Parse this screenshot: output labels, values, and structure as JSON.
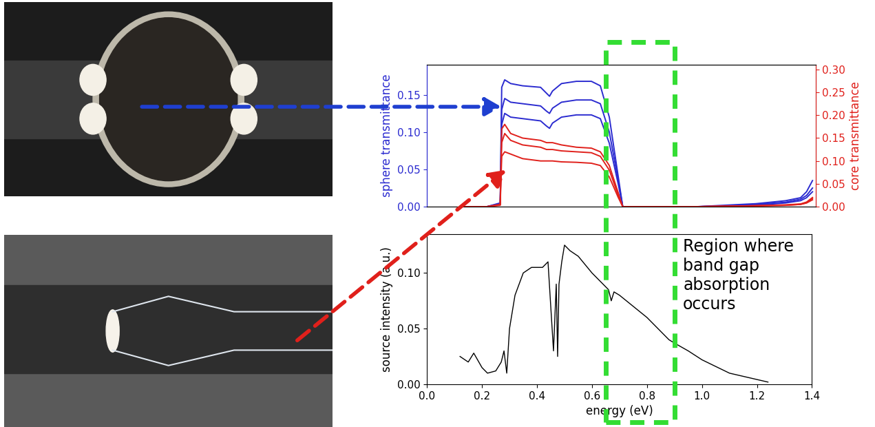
{
  "chart_data": [
    {
      "type": "line",
      "ylabel": "sphere transmittance",
      "y2label": "core transmittance",
      "tick_labels": "y",
      "xlim": [
        0,
        1.3
      ],
      "ylim": [
        0,
        0.19
      ],
      "yticks": [
        {
          "value": 0.0,
          "label": "0.00"
        },
        {
          "value": 0.05,
          "label": "0.05"
        },
        {
          "value": 0.1,
          "label": "0.10"
        },
        {
          "value": 0.15,
          "label": "0.15"
        }
      ],
      "y2lim": [
        0,
        0.31
      ],
      "y2ticks": [
        {
          "value": 0.0,
          "label": "0.00"
        },
        {
          "value": 0.05,
          "label": "0.05"
        },
        {
          "value": 0.1,
          "label": "0.10"
        },
        {
          "value": 0.15,
          "label": "0.15"
        },
        {
          "value": 0.2,
          "label": "0.20"
        },
        {
          "value": 0.25,
          "label": "0.25"
        },
        {
          "value": 0.3,
          "label": "0.30"
        }
      ],
      "ylabel_color": "#2b2bd0",
      "y2label_color": "#e0201b",
      "x": [
        0.12,
        0.2,
        0.245,
        0.25,
        0.26,
        0.28,
        0.32,
        0.38,
        0.4,
        0.41,
        0.42,
        0.45,
        0.5,
        0.55,
        0.58,
        0.61,
        0.64,
        0.655,
        0.7,
        0.9,
        1.0,
        1.1,
        1.2,
        1.25,
        1.27,
        1.29
      ],
      "series": [
        {
          "color": "#2b2bd0",
          "axis": "y",
          "values": [
            0,
            0,
            0.005,
            0.16,
            0.17,
            0.165,
            0.162,
            0.16,
            0.152,
            0.148,
            0.155,
            0.165,
            0.168,
            0.168,
            0.162,
            0.12,
            0.04,
            0,
            0,
            0,
            0.002,
            0.004,
            0.008,
            0.012,
            0.02,
            0.035
          ]
        },
        {
          "color": "#2b2bd0",
          "axis": "y",
          "values": [
            0,
            0,
            0.004,
            0.13,
            0.145,
            0.14,
            0.138,
            0.135,
            0.128,
            0.125,
            0.132,
            0.14,
            0.143,
            0.143,
            0.138,
            0.1,
            0.035,
            0,
            0,
            0,
            0.001,
            0.003,
            0.006,
            0.01,
            0.015,
            0.025
          ]
        },
        {
          "color": "#2b2bd0",
          "axis": "y",
          "values": [
            0,
            0,
            0.003,
            0.11,
            0.125,
            0.12,
            0.118,
            0.115,
            0.108,
            0.105,
            0.112,
            0.12,
            0.123,
            0.123,
            0.118,
            0.085,
            0.03,
            0,
            0,
            0,
            0.001,
            0.002,
            0.005,
            0.008,
            0.012,
            0.02
          ]
        },
        {
          "color": "#e0201b",
          "axis": "y2",
          "values": [
            0,
            0,
            0.005,
            0.17,
            0.18,
            0.16,
            0.15,
            0.145,
            0.14,
            0.14,
            0.14,
            0.135,
            0.13,
            0.128,
            0.12,
            0.09,
            0.03,
            0,
            0,
            0,
            0.001,
            0.002,
            0.004,
            0.006,
            0.01,
            0.02
          ]
        },
        {
          "color": "#e0201b",
          "axis": "y2",
          "values": [
            0,
            0,
            0.004,
            0.14,
            0.16,
            0.145,
            0.135,
            0.13,
            0.125,
            0.125,
            0.125,
            0.122,
            0.12,
            0.118,
            0.11,
            0.08,
            0.025,
            0,
            0,
            0,
            0.001,
            0.002,
            0.003,
            0.005,
            0.009,
            0.018
          ]
        },
        {
          "color": "#e0201b",
          "axis": "y2",
          "values": [
            0,
            0,
            0.003,
            0.11,
            0.12,
            0.115,
            0.105,
            0.1,
            0.1,
            0.1,
            0.1,
            0.098,
            0.097,
            0.095,
            0.09,
            0.065,
            0.02,
            0,
            0,
            0,
            0.001,
            0.002,
            0.003,
            0.005,
            0.008,
            0.015
          ]
        }
      ]
    },
    {
      "type": "line",
      "xlabel": "energy (eV)",
      "ylabel": "source intensity (a.u.)",
      "xlim": [
        0,
        1.4
      ],
      "xticks": [
        {
          "value": 0.0,
          "label": "0.0"
        },
        {
          "value": 0.2,
          "label": "0.2"
        },
        {
          "value": 0.4,
          "label": "0.4"
        },
        {
          "value": 0.6,
          "label": "0.6"
        },
        {
          "value": 0.8,
          "label": "0.8"
        },
        {
          "value": 1.0,
          "label": "1.0"
        },
        {
          "value": 1.2,
          "label": "1.2"
        },
        {
          "value": 1.4,
          "label": "1.4"
        }
      ],
      "ylim": [
        0,
        0.135
      ],
      "yticks": [
        {
          "value": 0.0,
          "label": "0.00"
        },
        {
          "value": 0.05,
          "label": "0.05"
        },
        {
          "value": 0.1,
          "label": "0.10"
        }
      ],
      "x": [
        0.12,
        0.15,
        0.17,
        0.2,
        0.22,
        0.25,
        0.27,
        0.28,
        0.29,
        0.3,
        0.32,
        0.35,
        0.38,
        0.42,
        0.44,
        0.45,
        0.46,
        0.47,
        0.475,
        0.48,
        0.49,
        0.5,
        0.52,
        0.55,
        0.6,
        0.64,
        0.66,
        0.67,
        0.68,
        0.7,
        0.8,
        0.88,
        0.9,
        0.95,
        1.0,
        1.1,
        1.24
      ],
      "values": [
        0.025,
        0.02,
        0.028,
        0.015,
        0.01,
        0.012,
        0.02,
        0.03,
        0.01,
        0.05,
        0.08,
        0.1,
        0.105,
        0.105,
        0.11,
        0.07,
        0.03,
        0.09,
        0.025,
        0.09,
        0.11,
        0.125,
        0.12,
        0.115,
        0.1,
        0.09,
        0.085,
        0.075,
        0.083,
        0.08,
        0.06,
        0.04,
        0.037,
        0.03,
        0.022,
        0.01,
        0.002
      ],
      "color": "#000000",
      "annotations": [
        {
          "text": "Region where\nband gap\nabsorption\noccurs",
          "region": [
            0.65,
            0.9
          ],
          "color": "#33dd33"
        }
      ]
    }
  ]
}
